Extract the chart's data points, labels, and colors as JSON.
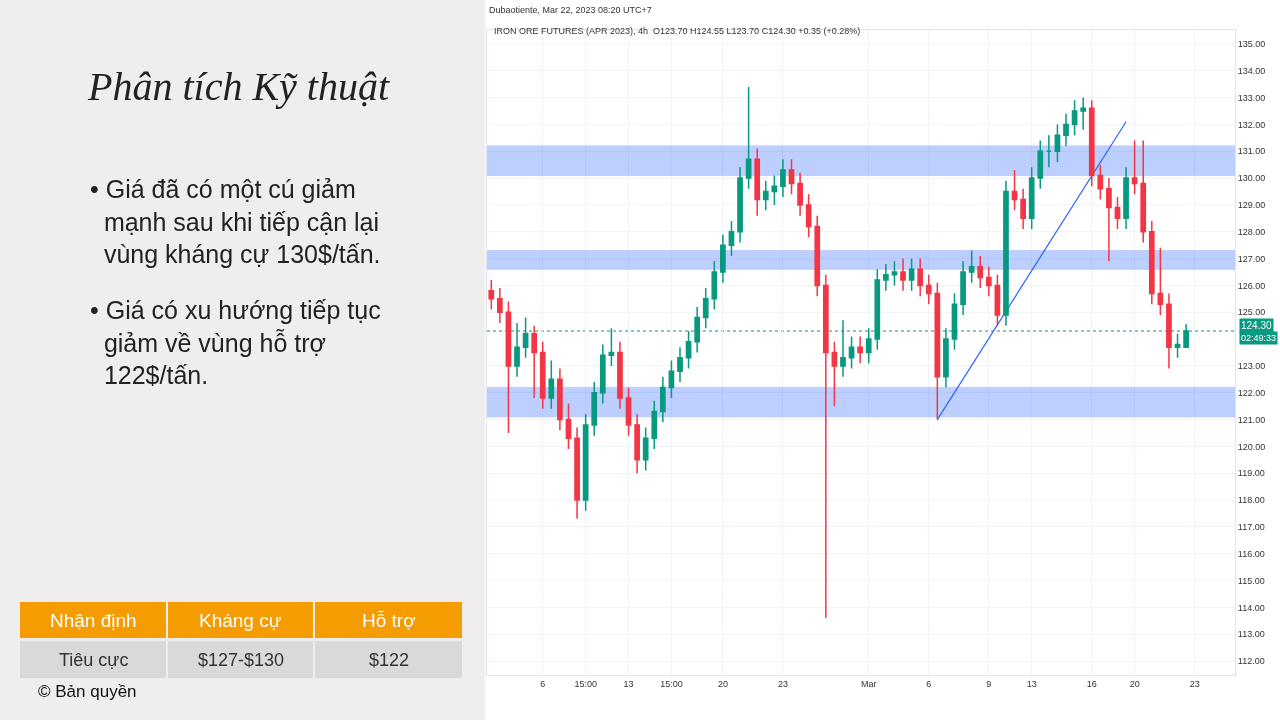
{
  "chart_data": {
    "type": "candlestick",
    "title": "Phân tích Kỹ thuật",
    "categories": [
      null,
      null,
      null,
      null,
      null,
      null,
      "6",
      null,
      null,
      null,
      null,
      "15:00",
      null,
      null,
      null,
      null,
      "13",
      null,
      null,
      null,
      null,
      "15:00",
      null,
      null,
      null,
      null,
      null,
      "20",
      null,
      null,
      null,
      null,
      null,
      null,
      "23",
      null,
      null,
      null,
      null,
      null,
      null,
      null,
      null,
      null,
      "Mar",
      null,
      null,
      null,
      null,
      null,
      null,
      "6",
      null,
      null,
      null,
      null,
      null,
      null,
      "9",
      null,
      null,
      null,
      null,
      "13",
      null,
      null,
      null,
      null,
      null,
      null,
      "16",
      null,
      null,
      null,
      null,
      "20",
      null,
      null,
      null,
      null,
      null,
      null,
      "23",
      null,
      null,
      null,
      null
    ],
    "ohlc": [
      [
        125.8,
        126.2,
        125.1,
        125.5
      ],
      [
        125.5,
        125.9,
        124.6,
        125.0
      ],
      [
        125.0,
        125.4,
        120.5,
        123.0
      ],
      [
        123.0,
        124.6,
        122.6,
        123.7
      ],
      [
        123.7,
        124.8,
        123.3,
        124.2
      ],
      [
        124.2,
        124.5,
        121.8,
        123.5
      ],
      [
        123.5,
        123.9,
        121.4,
        121.8
      ],
      [
        121.8,
        123.2,
        121.4,
        122.5
      ],
      [
        122.5,
        122.9,
        120.6,
        121.0
      ],
      [
        121.0,
        121.6,
        119.9,
        120.3
      ],
      [
        120.3,
        120.7,
        117.3,
        118.0
      ],
      [
        118.0,
        121.2,
        117.6,
        120.8
      ],
      [
        120.8,
        122.4,
        120.4,
        122.0
      ],
      [
        122.0,
        123.8,
        121.6,
        123.4
      ],
      [
        123.4,
        124.4,
        123.0,
        123.5
      ],
      [
        123.5,
        123.9,
        121.4,
        121.8
      ],
      [
        121.8,
        122.2,
        120.4,
        120.8
      ],
      [
        120.8,
        121.2,
        119.0,
        119.5
      ],
      [
        119.5,
        120.7,
        119.1,
        120.3
      ],
      [
        120.3,
        121.7,
        119.9,
        121.3
      ],
      [
        121.3,
        122.6,
        120.9,
        122.2
      ],
      [
        122.2,
        123.2,
        121.8,
        122.8
      ],
      [
        122.8,
        123.7,
        122.4,
        123.3
      ],
      [
        123.3,
        124.3,
        122.9,
        123.9
      ],
      [
        123.9,
        125.2,
        123.5,
        124.8
      ],
      [
        124.8,
        125.9,
        124.4,
        125.5
      ],
      [
        125.5,
        126.9,
        125.1,
        126.5
      ],
      [
        126.5,
        127.9,
        126.1,
        127.5
      ],
      [
        127.5,
        128.4,
        127.1,
        128.0
      ],
      [
        128.0,
        130.4,
        127.6,
        130.0
      ],
      [
        130.0,
        133.4,
        129.6,
        130.7
      ],
      [
        130.7,
        131.1,
        128.6,
        129.2
      ],
      [
        129.2,
        129.9,
        128.8,
        129.5
      ],
      [
        129.5,
        130.1,
        129.0,
        129.7
      ],
      [
        129.7,
        130.7,
        129.3,
        130.3
      ],
      [
        130.3,
        130.7,
        129.4,
        129.8
      ],
      [
        129.8,
        130.2,
        128.6,
        129.0
      ],
      [
        129.0,
        129.4,
        127.8,
        128.2
      ],
      [
        128.2,
        128.6,
        125.6,
        126.0
      ],
      [
        126.0,
        126.4,
        113.6,
        123.5
      ],
      [
        123.5,
        123.9,
        121.5,
        123.0
      ],
      [
        123.0,
        124.7,
        122.6,
        123.3
      ],
      [
        123.3,
        124.1,
        122.9,
        123.7
      ],
      [
        123.7,
        124.1,
        123.1,
        123.5
      ],
      [
        123.5,
        124.4,
        123.1,
        124.0
      ],
      [
        124.0,
        126.6,
        123.6,
        126.2
      ],
      [
        126.2,
        126.8,
        125.8,
        126.4
      ],
      [
        126.4,
        126.9,
        126.0,
        126.5
      ],
      [
        126.5,
        127.0,
        125.8,
        126.2
      ],
      [
        126.2,
        127.0,
        125.8,
        126.6
      ],
      [
        126.6,
        127.0,
        125.6,
        126.0
      ],
      [
        126.0,
        126.4,
        125.3,
        125.7
      ],
      [
        125.7,
        126.1,
        121.0,
        122.6
      ],
      [
        122.6,
        124.4,
        122.2,
        124.0
      ],
      [
        124.0,
        125.7,
        123.6,
        125.3
      ],
      [
        125.3,
        126.9,
        124.9,
        126.5
      ],
      [
        126.5,
        127.3,
        126.1,
        126.7
      ],
      [
        126.7,
        127.1,
        125.9,
        126.3
      ],
      [
        126.3,
        126.7,
        125.6,
        126.0
      ],
      [
        126.0,
        126.4,
        124.5,
        124.9
      ],
      [
        124.9,
        129.9,
        124.5,
        129.5
      ],
      [
        129.5,
        130.3,
        128.8,
        129.2
      ],
      [
        129.2,
        129.6,
        128.1,
        128.5
      ],
      [
        128.5,
        130.4,
        128.1,
        130.0
      ],
      [
        130.0,
        131.4,
        129.6,
        131.0
      ],
      [
        131.0,
        131.6,
        130.4,
        131.0
      ],
      [
        131.0,
        132.0,
        130.6,
        131.6
      ],
      [
        131.6,
        132.4,
        131.2,
        132.0
      ],
      [
        132.0,
        132.9,
        131.6,
        132.5
      ],
      [
        132.5,
        133.0,
        131.8,
        132.6
      ],
      [
        132.6,
        132.9,
        129.7,
        130.1
      ],
      [
        130.1,
        130.5,
        129.2,
        129.6
      ],
      [
        129.6,
        130.0,
        126.9,
        128.9
      ],
      [
        128.9,
        129.3,
        128.1,
        128.5
      ],
      [
        128.5,
        130.4,
        128.1,
        130.0
      ],
      [
        130.0,
        131.4,
        129.4,
        129.8
      ],
      [
        129.8,
        131.4,
        127.6,
        128.0
      ],
      [
        128.0,
        128.4,
        125.3,
        125.7
      ],
      [
        125.7,
        127.4,
        124.9,
        125.3
      ],
      [
        125.3,
        125.7,
        122.9,
        123.7
      ],
      [
        123.7,
        124.2,
        123.3,
        123.8
      ],
      [
        123.7,
        124.55,
        123.7,
        124.3
      ],
      null,
      null,
      null,
      null,
      null
    ],
    "series": [
      {
        "type": "line",
        "values": [
          null,
          null,
          null,
          null,
          null,
          null,
          null,
          null,
          null,
          null,
          null,
          null,
          null,
          null,
          null,
          null,
          null,
          null,
          null,
          null,
          null,
          null,
          null,
          null,
          null,
          null,
          null,
          null,
          null,
          null,
          null,
          null,
          null,
          null,
          null,
          null,
          null,
          null,
          null,
          null,
          null,
          null,
          null,
          null,
          null,
          null,
          null,
          null,
          null,
          null,
          null,
          null,
          121.0,
          null,
          null,
          null,
          null,
          null,
          null,
          null,
          null,
          null,
          null,
          null,
          null,
          null,
          null,
          null,
          null,
          null,
          null,
          null,
          null,
          null,
          132.1,
          null,
          null,
          null,
          null,
          null,
          null,
          null,
          null,
          null,
          null,
          null,
          null
        ],
        "color": "#2962ff"
      }
    ],
    "ylim": [
      111.48,
      135.52
    ],
    "yticks": [
      {
        "value": 112,
        "label": "112.00"
      },
      {
        "value": 113,
        "label": "113.00"
      },
      {
        "value": 114,
        "label": "114.00"
      },
      {
        "value": 115,
        "label": "115.00"
      },
      {
        "value": 116,
        "label": "116.00"
      },
      {
        "value": 117,
        "label": "117.00"
      },
      {
        "value": 118,
        "label": "118.00"
      },
      {
        "value": 119,
        "label": "119.00"
      },
      {
        "value": 120,
        "label": "120.00"
      },
      {
        "value": 121,
        "label": "121.00"
      },
      {
        "value": 122,
        "label": "122.00"
      },
      {
        "value": 123,
        "label": "123.00"
      },
      {
        "value": 125,
        "label": "125.00"
      },
      {
        "value": 126,
        "label": "126.00"
      },
      {
        "value": 127,
        "label": "127.00"
      },
      {
        "value": 128,
        "label": "128.00"
      },
      {
        "value": 129,
        "label": "129.00"
      },
      {
        "value": 130,
        "label": "130.00"
      },
      {
        "value": 131,
        "label": "131.00"
      },
      {
        "value": 132,
        "label": "132.00"
      },
      {
        "value": 133,
        "label": "133.00"
      },
      {
        "value": 134,
        "label": "134.00"
      },
      {
        "value": 135,
        "label": "135.00"
      }
    ],
    "grid": true,
    "ref_lines": [
      {
        "axis": "y",
        "value": 124.3,
        "label": "124.30",
        "color": "#089981",
        "line_style": "dotted"
      }
    ],
    "bands": [
      {
        "axis": "y",
        "from": 130.1,
        "to": 131.2,
        "color": "#2962ff"
      },
      {
        "axis": "y",
        "from": 126.6,
        "to": 127.3,
        "color": "#2962ff"
      },
      {
        "axis": "y",
        "from": 121.1,
        "to": 122.2,
        "color": "#2962ff"
      }
    ],
    "annotations": [
      "Dubaotiente, Mar 22, 2023 08:20 UTC+7",
      "IRON ORE FUTURES (APR 2023), 4h  O123.70 H124.55 L123.70 C124.30 +0.35 (+0.28%)",
      "• Giá đã có một cú giảm mạnh sau khi tiếp cận lại vùng kháng cự 130$/tấn.",
      "• Giá có xu hướng tiếp tục giảm về vùng hỗ trợ 122$/tấn.",
      "Nhận định",
      "Kháng cự",
      "Hỗ trợ",
      "Tiêu cực",
      "$127-$130",
      "$122",
      "© Bản quyền",
      "02:49:33"
    ]
  }
}
